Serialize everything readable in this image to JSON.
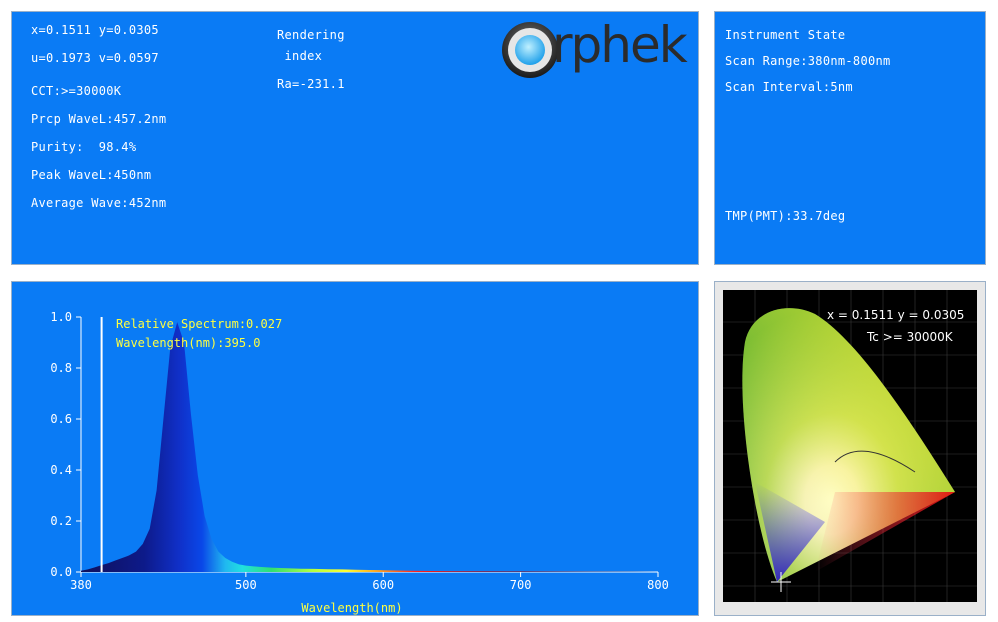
{
  "info": {
    "xy": "x=0.1511 y=0.0305",
    "uv": "u=0.1973 v=0.0597",
    "cct": "CCT:>=30000K",
    "prcp": "Prcp WaveL:457.2nm",
    "purity": "Purity:  98.4%",
    "peak": "Peak WaveL:450nm",
    "average": "Average Wave:452nm",
    "rendering_1": "Rendering",
    "rendering_2": " index",
    "ra": "Ra=-231.1",
    "logo": "rphek"
  },
  "instrument": {
    "title": "Instrument State",
    "range": "Scan Range:380nm-800nm",
    "interval": "Scan Interval:5nm",
    "tmp": "TMP(PMT):33.7deg"
  },
  "chart_data": {
    "type": "area",
    "xlabel": "Wavelength(nm)",
    "ylabel": "",
    "xlim": [
      380,
      800
    ],
    "ylim": [
      0,
      1.0
    ],
    "x_ticks": [
      380,
      500,
      600,
      700,
      800
    ],
    "x_tick_labels": [
      "380",
      "500",
      "600",
      "700",
      "800"
    ],
    "y_ticks": [
      0.0,
      0.2,
      0.4,
      0.6,
      0.8,
      1.0
    ],
    "y_tick_labels": [
      "0.0",
      "0.2",
      "0.4",
      "0.6",
      "0.8",
      "1.0"
    ],
    "cursor_wavelength": 395.0,
    "annotations": [
      "Relative Spectrum:0.027",
      "Wavelength(nm):395.0"
    ],
    "x": [
      380,
      385,
      390,
      395,
      400,
      405,
      410,
      415,
      420,
      425,
      430,
      435,
      440,
      445,
      450,
      455,
      460,
      465,
      470,
      475,
      480,
      485,
      490,
      495,
      500,
      510,
      520,
      530,
      540,
      550,
      560,
      570,
      580,
      590,
      600,
      620,
      650,
      700,
      750,
      800
    ],
    "values": [
      0.005,
      0.01,
      0.018,
      0.027,
      0.035,
      0.045,
      0.055,
      0.065,
      0.08,
      0.11,
      0.17,
      0.32,
      0.6,
      0.88,
      0.98,
      0.9,
      0.62,
      0.38,
      0.22,
      0.13,
      0.08,
      0.055,
      0.04,
      0.03,
      0.025,
      0.02,
      0.017,
      0.015,
      0.013,
      0.012,
      0.011,
      0.01,
      0.009,
      0.008,
      0.007,
      0.005,
      0.003,
      0.002,
      0.001,
      0.0
    ]
  },
  "cie": {
    "coords": "x = 0.1511 y = 0.0305",
    "tc": "Tc >= 30000K"
  }
}
